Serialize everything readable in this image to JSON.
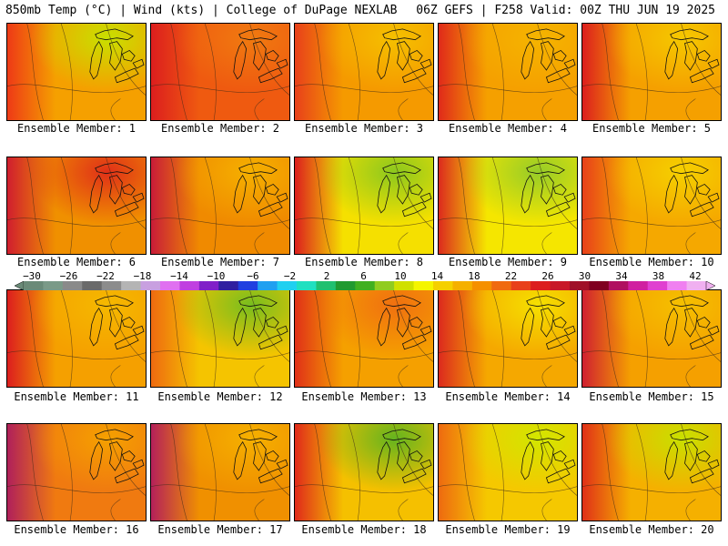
{
  "header": {
    "left": "850mb Temp (°C) | Wind (kts) | College of DuPage NEXLAB",
    "right": "06Z GEFS | F258 Valid: 00Z THU JUN 19 2025"
  },
  "members": [
    {
      "label": "Ensemble Member: 1",
      "bg": "#f5a000",
      "west": "#ee3a16",
      "north": "#c8e000"
    },
    {
      "label": "Ensemble Member: 2",
      "bg": "#ef5a10",
      "west": "#dc1e1e",
      "north": "#f07a10"
    },
    {
      "label": "Ensemble Member: 3",
      "bg": "#f59a00",
      "west": "#e8401a",
      "north": "#f5c000"
    },
    {
      "label": "Ensemble Member: 4",
      "bg": "#f5a000",
      "west": "#e02a1a",
      "north": "#f5b400"
    },
    {
      "label": "Ensemble Member: 5",
      "bg": "#f5a000",
      "west": "#dc1e1e",
      "north": "#f5c800"
    },
    {
      "label": "Ensemble Member: 6",
      "bg": "#f09000",
      "west": "#d01e2e",
      "north": "#e03018"
    },
    {
      "label": "Ensemble Member: 7",
      "bg": "#f08a00",
      "west": "#c81c38",
      "north": "#f5b000"
    },
    {
      "label": "Ensemble Member: 8",
      "bg": "#f5e000",
      "west": "#dc1e1e",
      "north": "#8cc81e"
    },
    {
      "label": "Ensemble Member: 9",
      "bg": "#f5e600",
      "west": "#dc2a1e",
      "north": "#96cc28"
    },
    {
      "label": "Ensemble Member: 10",
      "bg": "#f5a800",
      "west": "#e8401a",
      "north": "#f5d000"
    },
    {
      "label": "Ensemble Member: 11",
      "bg": "#f5a000",
      "west": "#dc1e1e",
      "north": "#f5b800"
    },
    {
      "label": "Ensemble Member: 12",
      "bg": "#f5c400",
      "west": "#ee6a10",
      "north": "#78be1e"
    },
    {
      "label": "Ensemble Member: 13",
      "bg": "#f5a000",
      "west": "#e03018",
      "north": "#f07010"
    },
    {
      "label": "Ensemble Member: 14",
      "bg": "#f5a800",
      "west": "#dc2a1e",
      "north": "#f5e000"
    },
    {
      "label": "Ensemble Member: 15",
      "bg": "#f5a000",
      "west": "#d02030",
      "north": "#f5c000"
    },
    {
      "label": "Ensemble Member: 16",
      "bg": "#f07a10",
      "west": "#b0205a",
      "north": "#f5a000"
    },
    {
      "label": "Ensemble Member: 17",
      "bg": "#f09000",
      "west": "#b4205a",
      "north": "#f5b000"
    },
    {
      "label": "Ensemble Member: 18",
      "bg": "#f5c000",
      "west": "#e02a1a",
      "north": "#64b41e"
    },
    {
      "label": "Ensemble Member: 19",
      "bg": "#f5c800",
      "west": "#ee6a10",
      "north": "#d2e600"
    },
    {
      "label": "Ensemble Member: 20",
      "bg": "#f5b000",
      "west": "#e03018",
      "north": "#c8e000"
    }
  ],
  "colorbar": {
    "labels": [
      "−30",
      "−26",
      "−22",
      "−18",
      "−14",
      "−10",
      "−6",
      "−2",
      "2",
      "6",
      "10",
      "14",
      "18",
      "22",
      "26",
      "30",
      "34",
      "38",
      "42"
    ],
    "colors": [
      "#6a8a78",
      "#7a9a88",
      "#8a8a8a",
      "#6a6a6a",
      "#8c8c8c",
      "#b4b4b4",
      "#c8a0e0",
      "#e070f0",
      "#c040e0",
      "#8020c8",
      "#3020a0",
      "#2040e0",
      "#20a0f0",
      "#20d0f0",
      "#20e0c0",
      "#20c070",
      "#209a30",
      "#40b020",
      "#90cc20",
      "#d0e000",
      "#f5f500",
      "#f5d000",
      "#f5b000",
      "#f59000",
      "#f06a10",
      "#e8401a",
      "#dc1e1e",
      "#c81828",
      "#a01028",
      "#800020",
      "#b01060",
      "#d020a0",
      "#e040d0",
      "#f080f0",
      "#f0b0f0"
    ]
  }
}
